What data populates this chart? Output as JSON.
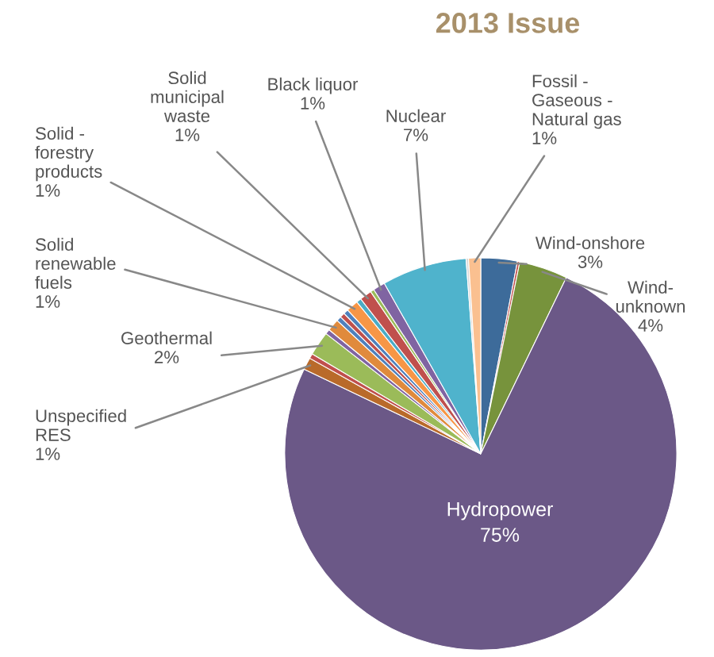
{
  "chart_data": {
    "type": "pie",
    "title": "2013 Issue",
    "categories": [
      "Wind-onshore",
      null,
      "Wind-\nunknown",
      "Hydropower",
      "Unspecified\nRES",
      null,
      "Geothermal",
      null,
      "Solid\nrenewable\nfuels",
      null,
      null,
      null,
      "Solid -\nforestry\nproducts",
      null,
      "Solid\nmunicipal\nwaste",
      null,
      "Black liquor",
      "Nuclear",
      null,
      "Fossil -\nGaseous -\nNatural gas"
    ],
    "values": [
      3,
      0.2,
      4,
      75,
      1,
      0.4,
      2,
      0.4,
      1,
      0.4,
      0.4,
      0.4,
      1,
      0.4,
      1,
      0.3,
      1,
      7,
      0.2,
      1
    ],
    "value_labels": [
      "3%",
      null,
      "4%",
      "75%",
      "1%",
      null,
      "2%",
      null,
      "1%",
      null,
      null,
      null,
      "1%",
      null,
      "1%",
      null,
      "1%",
      "7%",
      null,
      "1%"
    ],
    "colors": [
      "#3d6b9a",
      "#c0504d",
      "#77933c",
      "#6b5887",
      "#b96a2a",
      "#c0504d",
      "#9bbb59",
      "#8064a2",
      "#e08a3c",
      "#4f81bd",
      "#c0504d",
      "#4f81bd",
      "#f79646",
      "#4bacc6",
      "#c0504d",
      "#9bbb59",
      "#8064a2",
      "#4fb3cc",
      "#d9d9d9",
      "#fac090"
    ]
  }
}
